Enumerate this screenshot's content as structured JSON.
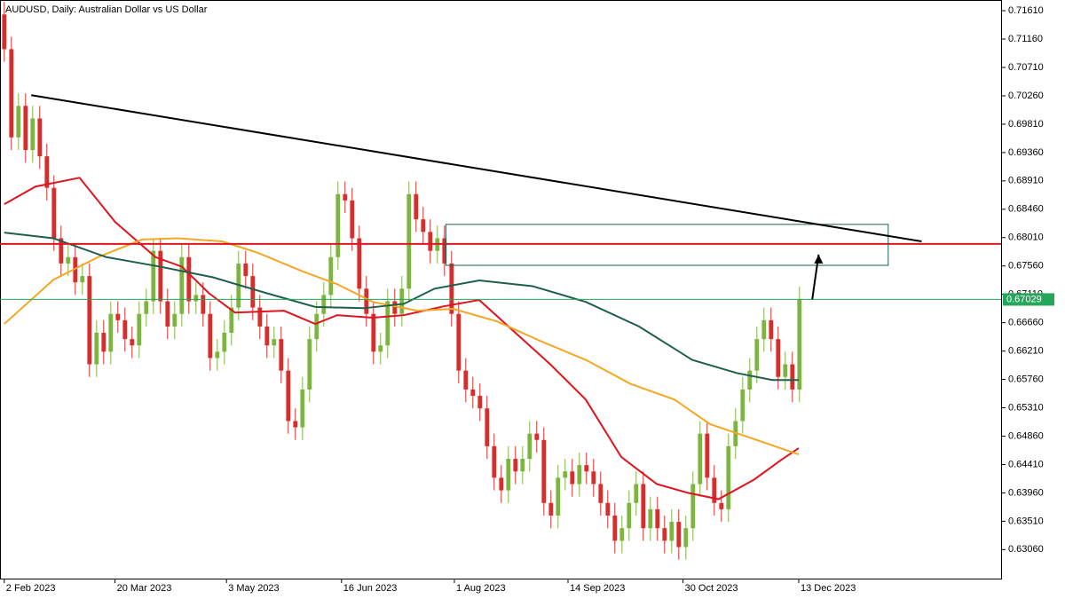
{
  "chart_data": {
    "type": "candlestick",
    "title": "AUDUSD, Daily:  Australian Dollar vs US Dollar",
    "up_color": "#7cb342",
    "down_color": "#d32f2f",
    "xlim": [
      -0.6,
      140.4
    ],
    "ylim": [
      0.626,
      0.7178
    ],
    "xticks": [
      {
        "value": 0,
        "label": "2 Feb 2023"
      },
      {
        "value": 15.6,
        "label": "20 Mar 2023"
      },
      {
        "value": 31.3,
        "label": "3 May 2023"
      },
      {
        "value": 47.5,
        "label": "16 Jun 2023"
      },
      {
        "value": 63.4,
        "label": "1 Aug 2023"
      },
      {
        "value": 79.4,
        "label": "14 Sep 2023"
      },
      {
        "value": 95.6,
        "label": "30 Oct 2023"
      },
      {
        "value": 111.9,
        "label": "13 Dec 2023"
      }
    ],
    "yticks": [
      {
        "value": 0.7161,
        "label": "0.71610"
      },
      {
        "value": 0.7116,
        "label": "0.71160"
      },
      {
        "value": 0.7071,
        "label": "0.70710"
      },
      {
        "value": 0.7026,
        "label": "0.70260"
      },
      {
        "value": 0.6981,
        "label": "0.69810"
      },
      {
        "value": 0.6936,
        "label": "0.69360"
      },
      {
        "value": 0.6891,
        "label": "0.68910"
      },
      {
        "value": 0.6846,
        "label": "0.68460"
      },
      {
        "value": 0.6801,
        "label": "0.68010"
      },
      {
        "value": 0.6756,
        "label": "0.67560"
      },
      {
        "value": 0.6711,
        "label": "0.67110"
      },
      {
        "value": 0.6666,
        "label": "0.66660"
      },
      {
        "value": 0.6621,
        "label": "0.66210"
      },
      {
        "value": 0.6576,
        "label": "0.65760"
      },
      {
        "value": 0.6531,
        "label": "0.65310"
      },
      {
        "value": 0.6486,
        "label": "0.64860"
      },
      {
        "value": 0.6441,
        "label": "0.64410"
      },
      {
        "value": 0.6396,
        "label": "0.63960"
      },
      {
        "value": 0.6351,
        "label": "0.63510"
      },
      {
        "value": 0.6306,
        "label": "0.63060"
      }
    ],
    "open": [
      0.7155,
      0.71,
      0.696,
      0.701,
      0.694,
      0.699,
      0.693,
      0.688,
      0.68,
      0.676,
      0.677,
      0.673,
      0.674,
      0.66,
      0.665,
      0.662,
      0.668,
      0.667,
      0.664,
      0.663,
      0.668,
      0.67,
      0.678,
      0.67,
      0.666,
      0.668,
      0.677,
      0.67,
      0.671,
      0.668,
      0.661,
      0.662,
      0.665,
      0.669,
      0.676,
      0.674,
      0.669,
      0.666,
      0.663,
      0.664,
      0.659,
      0.651,
      0.65,
      0.656,
      0.664,
      0.668,
      0.671,
      0.677,
      0.687,
      0.686,
      0.68,
      0.672,
      0.668,
      0.662,
      0.663,
      0.67,
      0.668,
      0.672,
      0.687,
      0.683,
      0.681,
      0.678,
      0.68,
      0.676,
      0.668,
      0.659,
      0.656,
      0.655,
      0.653,
      0.647,
      0.642,
      0.64,
      0.645,
      0.643,
      0.645,
      0.649,
      0.648,
      0.638,
      0.636,
      0.642,
      0.643,
      0.641,
      0.644,
      0.643,
      0.641,
      0.638,
      0.636,
      0.632,
      0.634,
      0.638,
      0.641,
      0.634,
      0.637,
      0.634,
      0.632,
      0.635,
      0.631,
      0.634,
      0.641,
      0.649,
      0.642,
      0.638,
      0.637,
      0.647,
      0.651,
      0.656,
      0.659,
      0.664,
      0.667,
      0.664,
      0.658,
      0.66,
      0.656
    ],
    "high": [
      0.7175,
      0.712,
      0.703,
      0.703,
      0.701,
      0.701,
      0.695,
      0.69,
      0.682,
      0.679,
      0.679,
      0.676,
      0.676,
      0.667,
      0.667,
      0.67,
      0.67,
      0.669,
      0.666,
      0.67,
      0.672,
      0.68,
      0.68,
      0.672,
      0.67,
      0.679,
      0.679,
      0.673,
      0.673,
      0.67,
      0.664,
      0.667,
      0.671,
      0.678,
      0.678,
      0.676,
      0.671,
      0.668,
      0.666,
      0.666,
      0.661,
      0.653,
      0.658,
      0.666,
      0.67,
      0.673,
      0.679,
      0.689,
      0.689,
      0.688,
      0.682,
      0.674,
      0.67,
      0.665,
      0.672,
      0.672,
      0.674,
      0.689,
      0.689,
      0.685,
      0.683,
      0.682,
      0.682,
      0.678,
      0.67,
      0.661,
      0.658,
      0.657,
      0.655,
      0.649,
      0.644,
      0.647,
      0.647,
      0.647,
      0.651,
      0.651,
      0.65,
      0.64,
      0.644,
      0.645,
      0.645,
      0.646,
      0.646,
      0.645,
      0.643,
      0.64,
      0.638,
      0.636,
      0.64,
      0.643,
      0.643,
      0.639,
      0.639,
      0.636,
      0.637,
      0.637,
      0.636,
      0.643,
      0.651,
      0.651,
      0.644,
      0.64,
      0.649,
      0.653,
      0.658,
      0.661,
      0.666,
      0.669,
      0.669,
      0.666,
      0.662,
      0.662,
      0.6723
    ],
    "low": [
      0.708,
      0.694,
      0.694,
      0.692,
      0.692,
      0.691,
      0.686,
      0.678,
      0.674,
      0.674,
      0.671,
      0.671,
      0.658,
      0.658,
      0.66,
      0.66,
      0.665,
      0.662,
      0.661,
      0.661,
      0.666,
      0.668,
      0.668,
      0.664,
      0.664,
      0.666,
      0.668,
      0.668,
      0.666,
      0.659,
      0.659,
      0.66,
      0.663,
      0.667,
      0.672,
      0.667,
      0.664,
      0.661,
      0.661,
      0.657,
      0.649,
      0.648,
      0.648,
      0.654,
      0.662,
      0.666,
      0.669,
      0.675,
      0.684,
      0.678,
      0.67,
      0.666,
      0.66,
      0.66,
      0.661,
      0.666,
      0.666,
      0.67,
      0.681,
      0.679,
      0.676,
      0.676,
      0.674,
      0.666,
      0.657,
      0.654,
      0.653,
      0.651,
      0.645,
      0.64,
      0.638,
      0.638,
      0.641,
      0.641,
      0.643,
      0.646,
      0.636,
      0.634,
      0.634,
      0.64,
      0.639,
      0.639,
      0.641,
      0.639,
      0.636,
      0.634,
      0.63,
      0.63,
      0.632,
      0.636,
      0.632,
      0.632,
      0.632,
      0.63,
      0.63,
      0.629,
      0.629,
      0.632,
      0.639,
      0.64,
      0.636,
      0.635,
      0.635,
      0.645,
      0.649,
      0.654,
      0.657,
      0.662,
      0.662,
      0.656,
      0.656,
      0.654,
      0.654
    ],
    "close": [
      0.71,
      0.696,
      0.701,
      0.694,
      0.699,
      0.693,
      0.688,
      0.68,
      0.676,
      0.677,
      0.673,
      0.674,
      0.66,
      0.665,
      0.662,
      0.668,
      0.667,
      0.664,
      0.663,
      0.668,
      0.67,
      0.678,
      0.67,
      0.666,
      0.668,
      0.677,
      0.67,
      0.671,
      0.668,
      0.661,
      0.662,
      0.665,
      0.669,
      0.676,
      0.674,
      0.669,
      0.666,
      0.663,
      0.664,
      0.659,
      0.651,
      0.65,
      0.656,
      0.664,
      0.668,
      0.671,
      0.677,
      0.687,
      0.686,
      0.68,
      0.672,
      0.668,
      0.662,
      0.663,
      0.67,
      0.668,
      0.672,
      0.687,
      0.683,
      0.681,
      0.678,
      0.68,
      0.676,
      0.668,
      0.659,
      0.656,
      0.655,
      0.653,
      0.647,
      0.642,
      0.64,
      0.645,
      0.643,
      0.645,
      0.649,
      0.648,
      0.638,
      0.636,
      0.642,
      0.643,
      0.641,
      0.644,
      0.643,
      0.641,
      0.638,
      0.636,
      0.632,
      0.634,
      0.638,
      0.641,
      0.634,
      0.637,
      0.634,
      0.632,
      0.635,
      0.631,
      0.634,
      0.641,
      0.649,
      0.642,
      0.638,
      0.637,
      0.647,
      0.651,
      0.656,
      0.659,
      0.664,
      0.667,
      0.664,
      0.658,
      0.66,
      0.656,
      0.6703
    ],
    "series": [
      {
        "color": "#e0141e",
        "x": [
          0,
          4.4,
          10.6,
          15.6,
          21.3,
          25,
          28.8,
          32.5,
          39.4,
          43.8,
          46.9,
          51.9,
          56.3,
          61.9,
          66.9,
          71.3,
          76.9,
          81.9,
          86.9,
          91.9,
          96.3,
          100.6,
          105.6,
          109.4,
          111.9
        ],
        "values": [
          0.6854,
          0.6882,
          0.6896,
          0.6826,
          0.677,
          0.6755,
          0.6713,
          0.6682,
          0.6685,
          0.6664,
          0.6678,
          0.6674,
          0.6678,
          0.6692,
          0.6702,
          0.6657,
          0.66,
          0.6544,
          0.6453,
          0.641,
          0.6396,
          0.6386,
          0.6417,
          0.6448,
          0.6467
        ]
      },
      {
        "color": "#f5a623",
        "x": [
          0,
          6.9,
          13.2,
          19.4,
          24.4,
          30.7,
          35.7,
          41.9,
          46.9,
          51.9,
          58.2,
          63.2,
          69.4,
          75.7,
          81.9,
          88.2,
          94.4,
          99.4,
          105.7,
          111.9
        ],
        "values": [
          0.6664,
          0.6734,
          0.677,
          0.6798,
          0.68,
          0.6795,
          0.6777,
          0.6748,
          0.6727,
          0.6699,
          0.6685,
          0.6688,
          0.6668,
          0.6636,
          0.6607,
          0.6569,
          0.6544,
          0.6505,
          0.6481,
          0.6457
        ]
      },
      {
        "color": "#1e5e4e",
        "x": [
          0,
          6.9,
          14.4,
          21.9,
          29.4,
          36.9,
          43.8,
          50.7,
          56.3,
          60.6,
          66.9,
          74.4,
          81.9,
          89.4,
          96.9,
          103.2,
          108.2,
          111.9
        ],
        "values": [
          0.6809,
          0.68,
          0.677,
          0.6755,
          0.6738,
          0.6713,
          0.6691,
          0.6689,
          0.6696,
          0.672,
          0.6733,
          0.6724,
          0.6699,
          0.666,
          0.6607,
          0.6586,
          0.6575,
          0.6575
        ]
      }
    ],
    "trendline": {
      "x": [
        3.8,
        129.2
      ],
      "y": [
        0.7027,
        0.6795
      ]
    },
    "rectangle": {
      "x": [
        62.2,
        124.5
      ],
      "y": [
        0.6822,
        0.6757
      ]
    },
    "resistance": 0.6791,
    "arrow": {
      "x": [
        113.8,
        114.7
      ],
      "y": [
        0.6703,
        0.6774
      ]
    },
    "last_price": 0.67029
  }
}
